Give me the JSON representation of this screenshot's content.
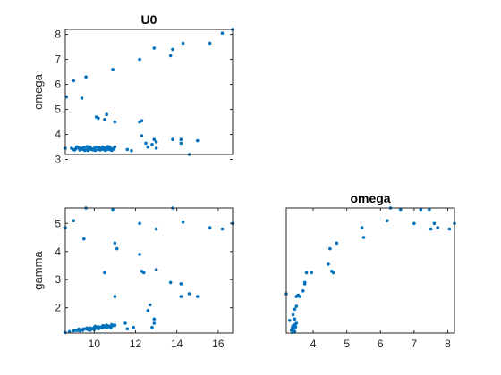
{
  "chart_data": [
    {
      "type": "scatter",
      "panel": "top-left",
      "title": "U0",
      "xlabel": "",
      "ylabel": "omega",
      "xlim": [
        8.6,
        16.7
      ],
      "ylim": [
        3.2,
        8.2
      ],
      "xticks": [],
      "yticks": [
        "3",
        "4",
        "5",
        "6",
        "7",
        "8"
      ],
      "ytick_values": [
        3,
        4,
        5,
        6,
        7,
        8
      ],
      "marker_color": "#0072BD",
      "points": [
        [
          8.6,
          3.45
        ],
        [
          8.65,
          5.5
        ],
        [
          9.0,
          6.15
        ],
        [
          9.4,
          5.45
        ],
        [
          9.6,
          6.3
        ],
        [
          10.1,
          4.7
        ],
        [
          10.2,
          4.65
        ],
        [
          10.5,
          4.6
        ],
        [
          10.6,
          4.8
        ],
        [
          10.9,
          6.6
        ],
        [
          11.0,
          4.5
        ],
        [
          11.0,
          3.5
        ],
        [
          10.8,
          3.4
        ],
        [
          10.6,
          3.45
        ],
        [
          10.4,
          3.5
        ],
        [
          10.2,
          3.4
        ],
        [
          10.0,
          3.45
        ],
        [
          9.8,
          3.5
        ],
        [
          9.6,
          3.4
        ],
        [
          9.4,
          3.45
        ],
        [
          9.2,
          3.5
        ],
        [
          9.0,
          3.4
        ],
        [
          8.9,
          3.45
        ],
        [
          9.1,
          3.42
        ],
        [
          9.3,
          3.38
        ],
        [
          9.5,
          3.48
        ],
        [
          9.7,
          3.36
        ],
        [
          9.9,
          3.42
        ],
        [
          10.1,
          3.5
        ],
        [
          10.3,
          3.38
        ],
        [
          10.5,
          3.46
        ],
        [
          10.7,
          3.4
        ],
        [
          10.9,
          3.44
        ],
        [
          9.15,
          3.5
        ],
        [
          9.35,
          3.44
        ],
        [
          9.55,
          3.36
        ],
        [
          9.75,
          3.46
        ],
        [
          9.95,
          3.38
        ],
        [
          10.15,
          3.48
        ],
        [
          10.35,
          3.42
        ],
        [
          10.55,
          3.36
        ],
        [
          10.75,
          3.5
        ],
        [
          10.95,
          3.42
        ],
        [
          9.05,
          3.38
        ],
        [
          9.25,
          3.46
        ],
        [
          9.45,
          3.4
        ],
        [
          9.65,
          3.52
        ],
        [
          9.85,
          3.4
        ],
        [
          10.05,
          3.36
        ],
        [
          10.25,
          3.46
        ],
        [
          10.45,
          3.4
        ],
        [
          10.65,
          3.52
        ],
        [
          10.85,
          3.36
        ],
        [
          11.6,
          3.4
        ],
        [
          11.8,
          3.35
        ],
        [
          12.2,
          4.5
        ],
        [
          12.3,
          4.55
        ],
        [
          12.3,
          3.95
        ],
        [
          12.2,
          7.0
        ],
        [
          12.5,
          3.65
        ],
        [
          12.6,
          3.5
        ],
        [
          12.8,
          3.6
        ],
        [
          12.9,
          3.8
        ],
        [
          13.0,
          3.7
        ],
        [
          12.9,
          7.45
        ],
        [
          13.0,
          3.45
        ],
        [
          13.7,
          7.15
        ],
        [
          13.8,
          7.4
        ],
        [
          13.8,
          3.8
        ],
        [
          14.2,
          3.8
        ],
        [
          14.2,
          3.65
        ],
        [
          14.3,
          7.65
        ],
        [
          14.6,
          3.2
        ],
        [
          15.0,
          3.75
        ],
        [
          15.6,
          7.65
        ],
        [
          16.2,
          8.05
        ],
        [
          16.7,
          8.2
        ]
      ]
    },
    {
      "type": "scatter",
      "panel": "bottom-left",
      "title": "",
      "xlabel": "",
      "ylabel": "gamma",
      "xlim": [
        8.6,
        16.7
      ],
      "ylim": [
        1.1,
        5.55
      ],
      "xticks": [
        "10",
        "12",
        "14",
        "16"
      ],
      "xtick_values": [
        10,
        12,
        14,
        16
      ],
      "yticks": [
        "2",
        "3",
        "4",
        "5"
      ],
      "ytick_values": [
        2,
        3,
        4,
        5
      ],
      "marker_color": "#0072BD",
      "points": [
        [
          8.6,
          4.85
        ],
        [
          8.6,
          1.12
        ],
        [
          8.8,
          1.15
        ],
        [
          9.0,
          5.1
        ],
        [
          9.0,
          1.18
        ],
        [
          9.2,
          1.2
        ],
        [
          9.4,
          1.22
        ],
        [
          9.6,
          5.55
        ],
        [
          9.6,
          1.25
        ],
        [
          9.5,
          4.45
        ],
        [
          9.8,
          1.28
        ],
        [
          9.8,
          1.2
        ],
        [
          10.0,
          1.3
        ],
        [
          10.0,
          1.22
        ],
        [
          10.2,
          1.32
        ],
        [
          10.2,
          1.25
        ],
        [
          10.4,
          1.35
        ],
        [
          10.4,
          1.28
        ],
        [
          10.5,
          3.25
        ],
        [
          10.6,
          1.38
        ],
        [
          10.6,
          1.3
        ],
        [
          10.8,
          1.35
        ],
        [
          10.8,
          1.28
        ],
        [
          10.9,
          5.5
        ],
        [
          11.0,
          1.38
        ],
        [
          11.0,
          4.3
        ],
        [
          11.1,
          4.1
        ],
        [
          11.0,
          2.4
        ],
        [
          9.1,
          1.2
        ],
        [
          9.3,
          1.18
        ],
        [
          9.5,
          1.25
        ],
        [
          9.7,
          1.22
        ],
        [
          9.9,
          1.26
        ],
        [
          10.1,
          1.28
        ],
        [
          10.3,
          1.3
        ],
        [
          10.5,
          1.32
        ],
        [
          10.7,
          1.34
        ],
        [
          10.9,
          1.36
        ],
        [
          9.25,
          1.24
        ],
        [
          9.45,
          1.2
        ],
        [
          9.65,
          1.28
        ],
        [
          9.85,
          1.24
        ],
        [
          10.05,
          1.34
        ],
        [
          10.25,
          1.3
        ],
        [
          10.45,
          1.36
        ],
        [
          10.65,
          1.32
        ],
        [
          10.85,
          1.4
        ],
        [
          11.5,
          1.45
        ],
        [
          11.6,
          1.25
        ],
        [
          11.9,
          1.3
        ],
        [
          12.2,
          3.9
        ],
        [
          12.3,
          3.3
        ],
        [
          12.4,
          3.25
        ],
        [
          12.2,
          5.0
        ],
        [
          12.6,
          1.9
        ],
        [
          12.7,
          2.1
        ],
        [
          12.8,
          1.3
        ],
        [
          12.9,
          1.6
        ],
        [
          12.9,
          1.45
        ],
        [
          13.0,
          3.35
        ],
        [
          13.0,
          4.8
        ],
        [
          13.7,
          2.9
        ],
        [
          13.8,
          5.55
        ],
        [
          14.2,
          2.85
        ],
        [
          14.2,
          2.4
        ],
        [
          14.3,
          5.05
        ],
        [
          14.6,
          2.5
        ],
        [
          15.0,
          2.4
        ],
        [
          15.6,
          4.85
        ],
        [
          16.2,
          4.8
        ],
        [
          16.7,
          5.0
        ]
      ]
    },
    {
      "type": "scatter",
      "panel": "bottom-right",
      "title": "omega",
      "xlabel": "",
      "ylabel": "",
      "xlim": [
        3.2,
        8.2
      ],
      "ylim": [
        1.1,
        5.55
      ],
      "xticks": [
        "4",
        "5",
        "6",
        "7",
        "8"
      ],
      "xtick_values": [
        4,
        5,
        6,
        7,
        8
      ],
      "yticks": [],
      "marker_color": "#0072BD",
      "points": [
        [
          3.2,
          2.5
        ],
        [
          3.3,
          1.55
        ],
        [
          3.35,
          1.2
        ],
        [
          3.4,
          1.25
        ],
        [
          3.45,
          1.15
        ],
        [
          3.4,
          1.35
        ],
        [
          3.38,
          1.3
        ],
        [
          3.42,
          1.18
        ],
        [
          3.36,
          1.22
        ],
        [
          3.44,
          1.28
        ],
        [
          3.46,
          1.4
        ],
        [
          3.48,
          1.32
        ],
        [
          3.39,
          1.12
        ],
        [
          3.43,
          1.38
        ],
        [
          3.5,
          1.45
        ],
        [
          3.45,
          1.6
        ],
        [
          3.4,
          1.75
        ],
        [
          3.45,
          1.95
        ],
        [
          3.5,
          2.05
        ],
        [
          3.5,
          2.4
        ],
        [
          3.55,
          2.45
        ],
        [
          3.6,
          2.4
        ],
        [
          3.7,
          2.6
        ],
        [
          3.75,
          2.85
        ],
        [
          3.75,
          2.9
        ],
        [
          3.8,
          3.25
        ],
        [
          3.95,
          3.25
        ],
        [
          4.45,
          3.55
        ],
        [
          4.5,
          4.1
        ],
        [
          4.55,
          3.3
        ],
        [
          4.6,
          3.25
        ],
        [
          4.7,
          4.3
        ],
        [
          5.45,
          4.85
        ],
        [
          5.5,
          4.5
        ],
        [
          6.2,
          5.1
        ],
        [
          6.3,
          5.55
        ],
        [
          6.6,
          5.5
        ],
        [
          7.0,
          5.0
        ],
        [
          7.2,
          5.5
        ],
        [
          7.45,
          5.5
        ],
        [
          7.5,
          4.8
        ],
        [
          7.6,
          5.0
        ],
        [
          7.7,
          4.85
        ],
        [
          8.05,
          4.8
        ],
        [
          8.2,
          5.0
        ]
      ]
    }
  ]
}
